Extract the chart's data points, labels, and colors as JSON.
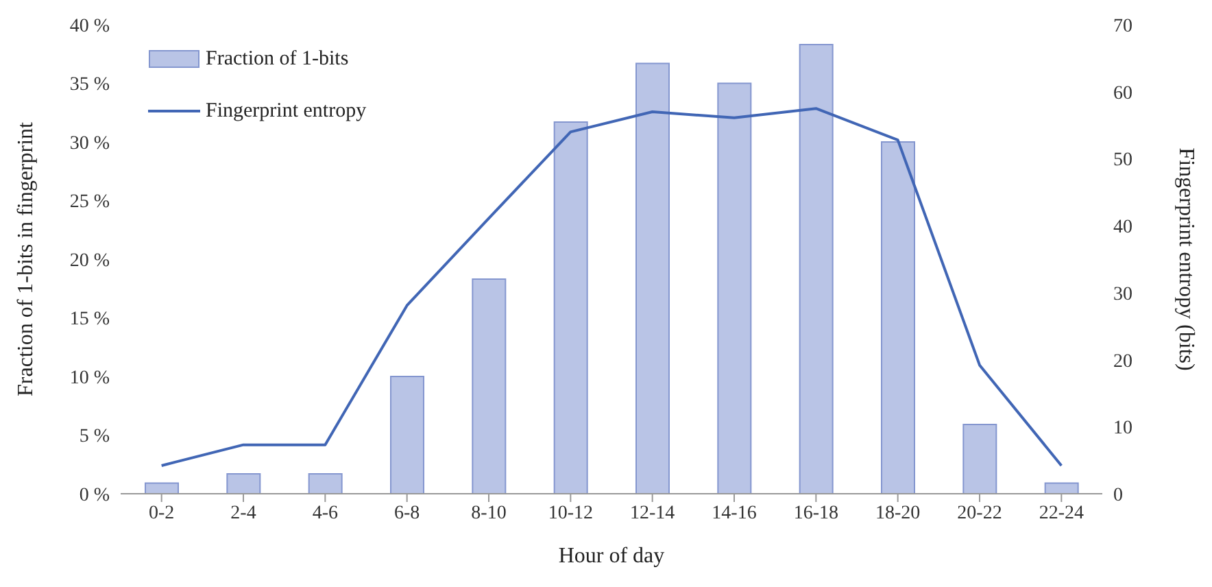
{
  "chart_data": {
    "type": "bar",
    "xlabel": "Hour of day",
    "ylabel": "Fraction of 1-bits in fingerprint",
    "y2label": "Fingerprint entropy (bits)",
    "categories": [
      "0-2",
      "2-4",
      "4-6",
      "6-8",
      "8-10",
      "10-12",
      "12-14",
      "14-16",
      "16-18",
      "18-20",
      "20-22",
      "22-24"
    ],
    "series": [
      {
        "name": "Fraction of 1-bits",
        "color": "#b9c4e6",
        "values": [
          0.9,
          1.7,
          1.7,
          10.0,
          18.3,
          31.7,
          36.7,
          35.0,
          38.3,
          30.0,
          5.9,
          0.9
        ]
      },
      {
        "name": "Fingerprint entropy",
        "type": "line",
        "axis": "y2",
        "color": "#4166b5",
        "values": [
          4.2,
          7.3,
          7.3,
          28.1,
          41.1,
          54.0,
          57.0,
          56.1,
          57.5,
          52.8,
          19.2,
          4.2
        ]
      }
    ],
    "ylim": [
      0,
      40
    ],
    "yticks": [
      {
        "value": 0,
        "label": "0 %"
      },
      {
        "value": 5,
        "label": "5 %"
      },
      {
        "value": 10,
        "label": "10 %"
      },
      {
        "value": 15,
        "label": "15 %"
      },
      {
        "value": 20,
        "label": "20 %"
      },
      {
        "value": 25,
        "label": "25 %"
      },
      {
        "value": 30,
        "label": "30 %"
      },
      {
        "value": 35,
        "label": "35 %"
      },
      {
        "value": 40,
        "label": "40 %"
      }
    ],
    "y2lim": [
      0,
      70
    ],
    "y2ticks": [
      0,
      10,
      20,
      30,
      40,
      50,
      60,
      70
    ],
    "legend": "top left",
    "grid": false,
    "marker": "none"
  }
}
